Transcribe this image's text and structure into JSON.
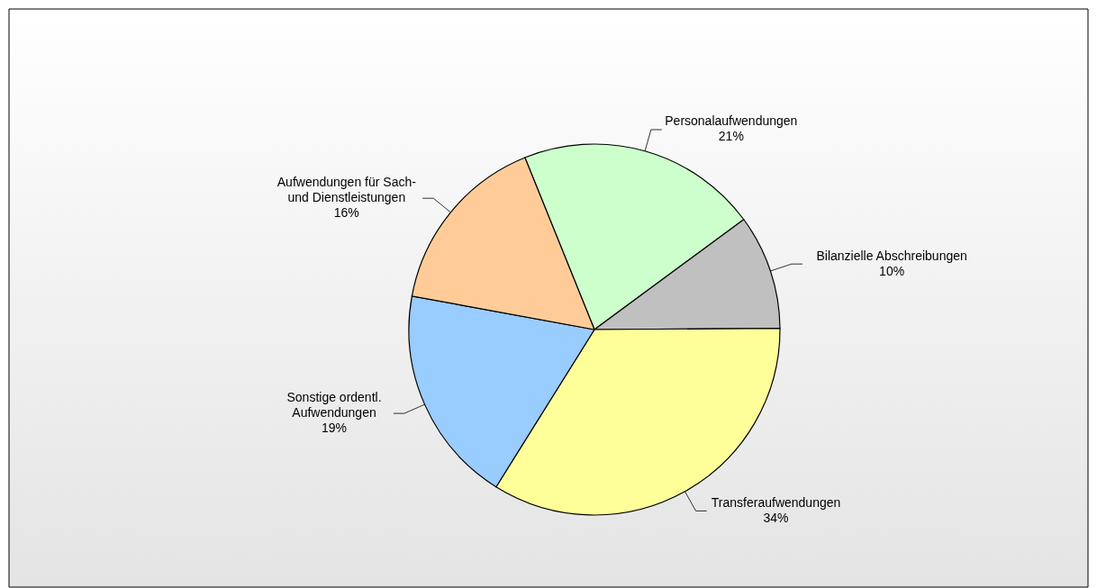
{
  "chart_data": {
    "type": "pie",
    "categories": [
      "Personalaufwendungen",
      "Bilanzielle Abschreibungen",
      "Transferaufwendungen",
      "Sonstige ordentl.\nAufwendungen",
      "Aufwendungen für Sach-\nund Dienstleistungen"
    ],
    "values": [
      21,
      10,
      34,
      19,
      16
    ],
    "value_labels": [
      "21%",
      "10%",
      "34%",
      "19%",
      "16%"
    ],
    "colors": [
      "#ccffcc",
      "#c0c0c0",
      "#ffff99",
      "#99ccff",
      "#ffcc99"
    ]
  }
}
